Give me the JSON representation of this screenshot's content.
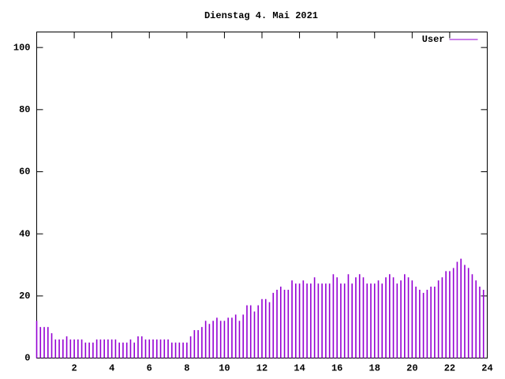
{
  "chart_data": {
    "type": "bar",
    "title": "Dienstag 4. Mai 2021",
    "x": [
      0,
      0.2,
      0.4,
      0.6,
      0.8,
      1,
      1.2,
      1.4,
      1.6,
      1.8,
      2,
      2.2,
      2.4,
      2.6,
      2.8,
      3,
      3.2,
      3.4,
      3.6,
      3.8,
      4,
      4.2,
      4.4,
      4.6,
      4.8,
      5,
      5.2,
      5.4,
      5.6,
      5.8,
      6,
      6.2,
      6.4,
      6.6,
      6.8,
      7,
      7.2,
      7.4,
      7.6,
      7.8,
      8,
      8.2,
      8.4,
      8.6,
      8.8,
      9,
      9.2,
      9.4,
      9.6,
      9.8,
      10,
      10.2,
      10.4,
      10.6,
      10.8,
      11,
      11.2,
      11.4,
      11.6,
      11.8,
      12,
      12.2,
      12.4,
      12.6,
      12.8,
      13,
      13.2,
      13.4,
      13.6,
      13.8,
      14,
      14.2,
      14.4,
      14.6,
      14.8,
      15,
      15.2,
      15.4,
      15.6,
      15.8,
      16,
      16.2,
      16.4,
      16.6,
      16.8,
      17,
      17.2,
      17.4,
      17.6,
      17.8,
      18,
      18.2,
      18.4,
      18.6,
      18.8,
      19,
      19.2,
      19.4,
      19.6,
      19.8,
      20,
      20.2,
      20.4,
      20.6,
      20.8,
      21,
      21.2,
      21.4,
      21.6,
      21.8,
      22,
      22.2,
      22.4,
      22.6,
      22.8,
      23,
      23.2,
      23.4,
      23.6,
      23.8
    ],
    "series": [
      {
        "name": "User",
        "color": "#9400d3",
        "values": [
          12,
          10,
          10,
          10,
          8,
          6,
          6,
          6,
          7,
          6,
          6,
          6,
          6,
          5,
          5,
          5,
          6,
          6,
          6,
          6,
          6,
          6,
          5,
          5,
          5,
          6,
          5,
          7,
          7,
          6,
          6,
          6,
          6,
          6,
          6,
          6,
          5,
          5,
          5,
          5,
          5,
          7,
          9,
          9,
          10,
          12,
          11,
          12,
          13,
          12,
          12,
          13,
          13,
          14,
          12,
          14,
          17,
          17,
          15,
          17,
          19,
          19,
          18,
          21,
          22,
          23,
          22,
          22,
          25,
          24,
          24,
          25,
          24,
          24,
          26,
          24,
          24,
          24,
          24,
          27,
          26,
          24,
          24,
          27,
          24,
          26,
          27,
          26,
          24,
          24,
          24,
          25,
          24,
          26,
          27,
          26,
          24,
          25,
          27,
          26,
          25,
          23,
          22,
          21,
          22,
          23,
          23,
          25,
          26,
          28,
          28,
          29,
          31,
          32,
          30,
          29,
          27,
          25,
          23,
          22
        ]
      }
    ],
    "xlim": [
      0,
      24
    ],
    "xticks": [
      2,
      4,
      6,
      8,
      10,
      12,
      14,
      16,
      18,
      20,
      22,
      24
    ],
    "ylim": [
      0,
      105
    ],
    "yticks": [
      0,
      20,
      40,
      60,
      80,
      100
    ],
    "legend": "top-right"
  }
}
